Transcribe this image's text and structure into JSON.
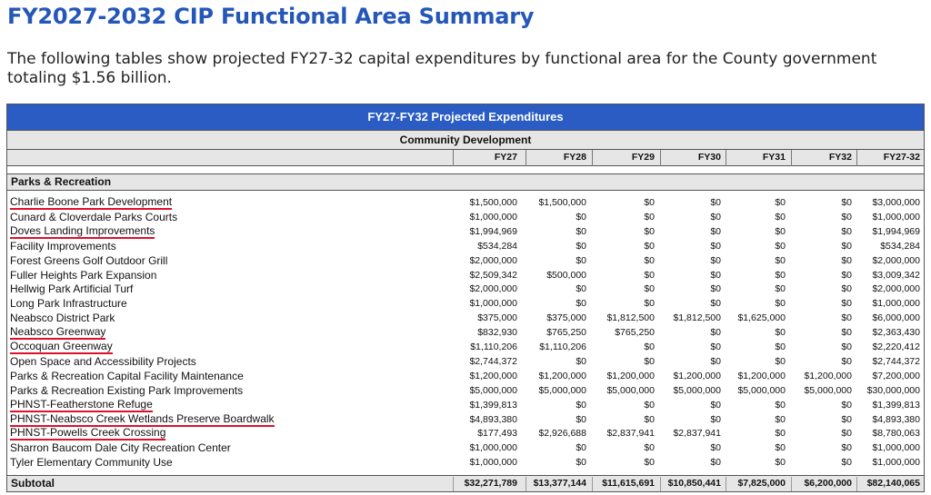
{
  "title": "FY2027-2032 CIP Functional Area Summary",
  "intro": "The following tables show projected FY27-32 capital expenditures by functional area for the County government totaling $1.56 billion.",
  "table": {
    "header": "FY27-FY32 Projected Expenditures",
    "subheader": "Community Development",
    "columns": [
      "FY27",
      "FY28",
      "FY29",
      "FY30",
      "FY31",
      "FY32",
      "FY27-32"
    ],
    "section": "Parks & Recreation",
    "rows": [
      {
        "name": "Charlie Boone Park Development",
        "underlined": true,
        "values": [
          "$1,500,000",
          "$1,500,000",
          "$0",
          "$0",
          "$0",
          "$0",
          "$3,000,000"
        ]
      },
      {
        "name": "Cunard & Cloverdale Parks Courts",
        "underlined": false,
        "values": [
          "$1,000,000",
          "$0",
          "$0",
          "$0",
          "$0",
          "$0",
          "$1,000,000"
        ]
      },
      {
        "name": "Doves Landing Improvements",
        "underlined": true,
        "values": [
          "$1,994,969",
          "$0",
          "$0",
          "$0",
          "$0",
          "$0",
          "$1,994,969"
        ]
      },
      {
        "name": "Facility Improvements",
        "underlined": false,
        "values": [
          "$534,284",
          "$0",
          "$0",
          "$0",
          "$0",
          "$0",
          "$534,284"
        ]
      },
      {
        "name": "Forest Greens Golf Outdoor Grill",
        "underlined": false,
        "values": [
          "$2,000,000",
          "$0",
          "$0",
          "$0",
          "$0",
          "$0",
          "$2,000,000"
        ]
      },
      {
        "name": "Fuller Heights Park Expansion",
        "underlined": false,
        "values": [
          "$2,509,342",
          "$500,000",
          "$0",
          "$0",
          "$0",
          "$0",
          "$3,009,342"
        ]
      },
      {
        "name": "Hellwig Park Artificial Turf",
        "underlined": false,
        "values": [
          "$2,000,000",
          "$0",
          "$0",
          "$0",
          "$0",
          "$0",
          "$2,000,000"
        ]
      },
      {
        "name": "Long Park Infrastructure",
        "underlined": false,
        "values": [
          "$1,000,000",
          "$0",
          "$0",
          "$0",
          "$0",
          "$0",
          "$1,000,000"
        ]
      },
      {
        "name": "Neabsco District Park",
        "underlined": false,
        "values": [
          "$375,000",
          "$375,000",
          "$1,812,500",
          "$1,812,500",
          "$1,625,000",
          "$0",
          "$6,000,000"
        ]
      },
      {
        "name": "Neabsco Greenway",
        "underlined": true,
        "values": [
          "$832,930",
          "$765,250",
          "$765,250",
          "$0",
          "$0",
          "$0",
          "$2,363,430"
        ]
      },
      {
        "name": "Occoquan Greenway",
        "underlined": true,
        "values": [
          "$1,110,206",
          "$1,110,206",
          "$0",
          "$0",
          "$0",
          "$0",
          "$2,220,412"
        ]
      },
      {
        "name": "Open Space and Accessibility Projects",
        "underlined": false,
        "values": [
          "$2,744,372",
          "$0",
          "$0",
          "$0",
          "$0",
          "$0",
          "$2,744,372"
        ]
      },
      {
        "name": "Parks & Recreation Capital Facility Maintenance",
        "underlined": false,
        "values": [
          "$1,200,000",
          "$1,200,000",
          "$1,200,000",
          "$1,200,000",
          "$1,200,000",
          "$1,200,000",
          "$7,200,000"
        ]
      },
      {
        "name": "Parks & Recreation Existing Park Improvements",
        "underlined": false,
        "values": [
          "$5,000,000",
          "$5,000,000",
          "$5,000,000",
          "$5,000,000",
          "$5,000,000",
          "$5,000,000",
          "$30,000,000"
        ]
      },
      {
        "name": "PHNST-Featherstone Refuge",
        "underlined": true,
        "values": [
          "$1,399,813",
          "$0",
          "$0",
          "$0",
          "$0",
          "$0",
          "$1,399,813"
        ]
      },
      {
        "name": "PHNST-Neabsco Creek Wetlands Preserve Boardwalk",
        "underlined": true,
        "values": [
          "$4,893,380",
          "$0",
          "$0",
          "$0",
          "$0",
          "$0",
          "$4,893,380"
        ]
      },
      {
        "name": "PHNST-Powells Creek Crossing",
        "underlined": true,
        "values": [
          "$177,493",
          "$2,926,688",
          "$2,837,941",
          "$2,837,941",
          "$0",
          "$0",
          "$8,780,063"
        ]
      },
      {
        "name": "Sharron Baucom Dale City Recreation Center",
        "underlined": false,
        "values": [
          "$1,000,000",
          "$0",
          "$0",
          "$0",
          "$0",
          "$0",
          "$1,000,000"
        ]
      },
      {
        "name": "Tyler Elementary Community Use",
        "underlined": false,
        "values": [
          "$1,000,000",
          "$0",
          "$0",
          "$0",
          "$0",
          "$0",
          "$1,000,000"
        ]
      }
    ],
    "subtotal": {
      "label": "Subtotal",
      "values": [
        "$32,271,789",
        "$13,377,144",
        "$11,615,691",
        "$10,850,441",
        "$7,825,000",
        "$6,200,000",
        "$82,140,065"
      ]
    },
    "annotation_color": "#e0102a"
  }
}
